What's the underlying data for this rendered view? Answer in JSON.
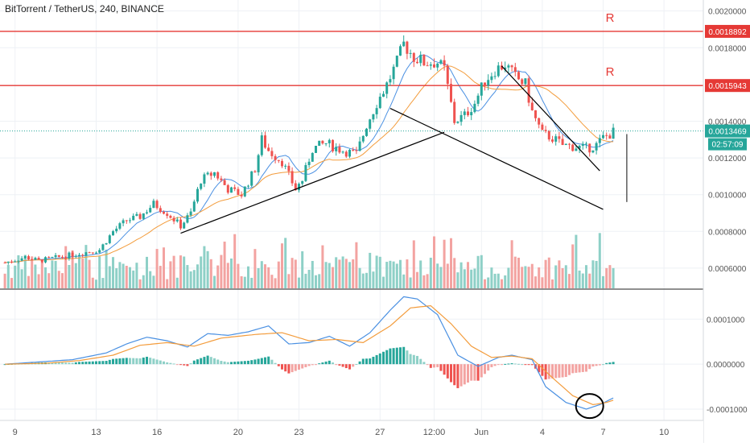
{
  "title": "BitTorrent / TetherUS, 240, BINANCE",
  "colors": {
    "up": "#26a69a",
    "down": "#ef5350",
    "up_vol": "#8ed0c7",
    "down_vol": "#f3a3a1",
    "resistance": "#e53935",
    "ma_fast": "#4a90e2",
    "ma_slow": "#f39c3c",
    "current": "#26a69a",
    "trendline": "#000000",
    "grid": "#eef1f5",
    "axis_text": "#555555"
  },
  "chart_data": [
    {
      "type": "candlestick",
      "name": "price",
      "ylim": [
        0.00049,
        0.00206
      ],
      "y_ticks": [
        "0.0020000",
        "0.0018000",
        "0.0014000",
        "0.0012000",
        "0.0010000",
        "0.0008000",
        "0.0006000"
      ],
      "y_tick_values": [
        0.002,
        0.0018,
        0.0014,
        0.0012,
        0.001,
        0.0008,
        0.0006
      ],
      "x_ticks": [
        {
          "label": "9",
          "bar": 3
        },
        {
          "label": "13",
          "bar": 27
        },
        {
          "label": "16",
          "bar": 45
        },
        {
          "label": "20",
          "bar": 69
        },
        {
          "label": "23",
          "bar": 87
        },
        {
          "label": "27",
          "bar": 111
        },
        {
          "label": "12:00",
          "bar": 127
        },
        {
          "label": "Jun",
          "bar": 141
        },
        {
          "label": "4",
          "bar": 159
        },
        {
          "label": "7",
          "bar": 177
        },
        {
          "label": "10",
          "bar": 195
        }
      ],
      "anchors": [
        [
          0,
          0.00063
        ],
        [
          6,
          0.00066
        ],
        [
          10,
          0.00064
        ],
        [
          16,
          0.00066
        ],
        [
          22,
          0.00068
        ],
        [
          28,
          0.0007
        ],
        [
          32,
          0.0008
        ],
        [
          36,
          0.00086
        ],
        [
          40,
          0.00088
        ],
        [
          44,
          0.00095
        ],
        [
          48,
          0.0009
        ],
        [
          52,
          0.00083
        ],
        [
          55,
          0.0009
        ],
        [
          58,
          0.00108
        ],
        [
          62,
          0.00112
        ],
        [
          66,
          0.00103
        ],
        [
          70,
          0.001
        ],
        [
          74,
          0.00114
        ],
        [
          76,
          0.0013
        ],
        [
          78,
          0.00124
        ],
        [
          82,
          0.00118
        ],
        [
          86,
          0.00103
        ],
        [
          88,
          0.00108
        ],
        [
          91,
          0.00125
        ],
        [
          95,
          0.00128
        ],
        [
          100,
          0.00124
        ],
        [
          104,
          0.00122
        ],
        [
          107,
          0.00138
        ],
        [
          110,
          0.0015
        ],
        [
          113,
          0.0016
        ],
        [
          116,
          0.00172
        ],
        [
          118,
          0.00182
        ],
        [
          121,
          0.00175
        ],
        [
          124,
          0.00172
        ],
        [
          128,
          0.00172
        ],
        [
          130,
          0.00168
        ],
        [
          133,
          0.0014
        ],
        [
          136,
          0.00143
        ],
        [
          139,
          0.0015
        ],
        [
          142,
          0.00162
        ],
        [
          145,
          0.00168
        ],
        [
          148,
          0.00171
        ],
        [
          151,
          0.00164
        ],
        [
          154,
          0.0016
        ],
        [
          156,
          0.00145
        ],
        [
          159,
          0.00133
        ],
        [
          162,
          0.00131
        ],
        [
          165,
          0.00127
        ],
        [
          169,
          0.00126
        ],
        [
          172,
          0.00125
        ],
        [
          175,
          0.00127
        ],
        [
          177,
          0.00131
        ],
        [
          180,
          0.00134
        ]
      ],
      "last_bar": 180,
      "resistance": [
        {
          "value": 0.0018892,
          "label": "0.0018892",
          "marker": "R"
        },
        {
          "value": 0.0015943,
          "label": "0.0015943",
          "marker": "R"
        }
      ],
      "current_price": {
        "value": 0.0013469,
        "label": "0.0013469",
        "countdown": "02:57:09"
      },
      "trendlines": [
        [
          [
            52,
            0.00079
          ],
          [
            130,
            0.00134
          ]
        ],
        [
          [
            114,
            0.00147
          ],
          [
            177,
            0.00092
          ]
        ],
        [
          [
            147,
            0.0017
          ],
          [
            176,
            0.00113
          ]
        ]
      ],
      "target_line": [
        [
          184,
          0.00133
        ],
        [
          184,
          0.00096
        ]
      ]
    },
    {
      "type": "macd",
      "name": "macd",
      "ylim": [
        -0.000125,
        0.000165
      ],
      "y_ticks": [
        "0.0001000",
        "0.0000000",
        "-0.0001000"
      ],
      "y_tick_values": [
        0.0001,
        0.0,
        -0.0001
      ],
      "macd_anchors": [
        [
          0,
          0.0
        ],
        [
          10,
          5e-06
        ],
        [
          20,
          1e-05
        ],
        [
          30,
          2.5e-05
        ],
        [
          36,
          4.5e-05
        ],
        [
          42,
          6e-05
        ],
        [
          48,
          5.2e-05
        ],
        [
          54,
          3.8e-05
        ],
        [
          60,
          6.8e-05
        ],
        [
          66,
          6.4e-05
        ],
        [
          72,
          7.2e-05
        ],
        [
          78,
          8.5e-05
        ],
        [
          84,
          4.5e-05
        ],
        [
          90,
          4.8e-05
        ],
        [
          96,
          6.2e-05
        ],
        [
          102,
          4e-05
        ],
        [
          108,
          7e-05
        ],
        [
          114,
          0.00012
        ],
        [
          118,
          0.00015
        ],
        [
          122,
          0.000145
        ],
        [
          128,
          0.00011
        ],
        [
          134,
          2e-05
        ],
        [
          140,
          -5e-06
        ],
        [
          146,
          1.5e-05
        ],
        [
          150,
          2e-05
        ],
        [
          156,
          1e-05
        ],
        [
          160,
          -5e-05
        ],
        [
          166,
          -8.5e-05
        ],
        [
          172,
          -0.0001
        ],
        [
          176,
          -9e-05
        ],
        [
          180,
          -7.5e-05
        ]
      ],
      "signal_anchors": [
        [
          0,
          0.0
        ],
        [
          12,
          2e-06
        ],
        [
          22,
          8e-06
        ],
        [
          32,
          2e-05
        ],
        [
          40,
          4.2e-05
        ],
        [
          48,
          4.8e-05
        ],
        [
          56,
          4e-05
        ],
        [
          64,
          5.8e-05
        ],
        [
          74,
          6.6e-05
        ],
        [
          82,
          7e-05
        ],
        [
          90,
          5.2e-05
        ],
        [
          98,
          5.5e-05
        ],
        [
          106,
          4.8e-05
        ],
        [
          114,
          8.5e-05
        ],
        [
          120,
          0.000125
        ],
        [
          126,
          0.00013
        ],
        [
          132,
          9e-05
        ],
        [
          138,
          4e-05
        ],
        [
          144,
          1.5e-05
        ],
        [
          150,
          1.8e-05
        ],
        [
          156,
          1.2e-05
        ],
        [
          162,
          -3e-05
        ],
        [
          168,
          -7e-05
        ],
        [
          174,
          -9e-05
        ],
        [
          178,
          -8.5e-05
        ],
        [
          180,
          -8e-05
        ]
      ]
    }
  ]
}
